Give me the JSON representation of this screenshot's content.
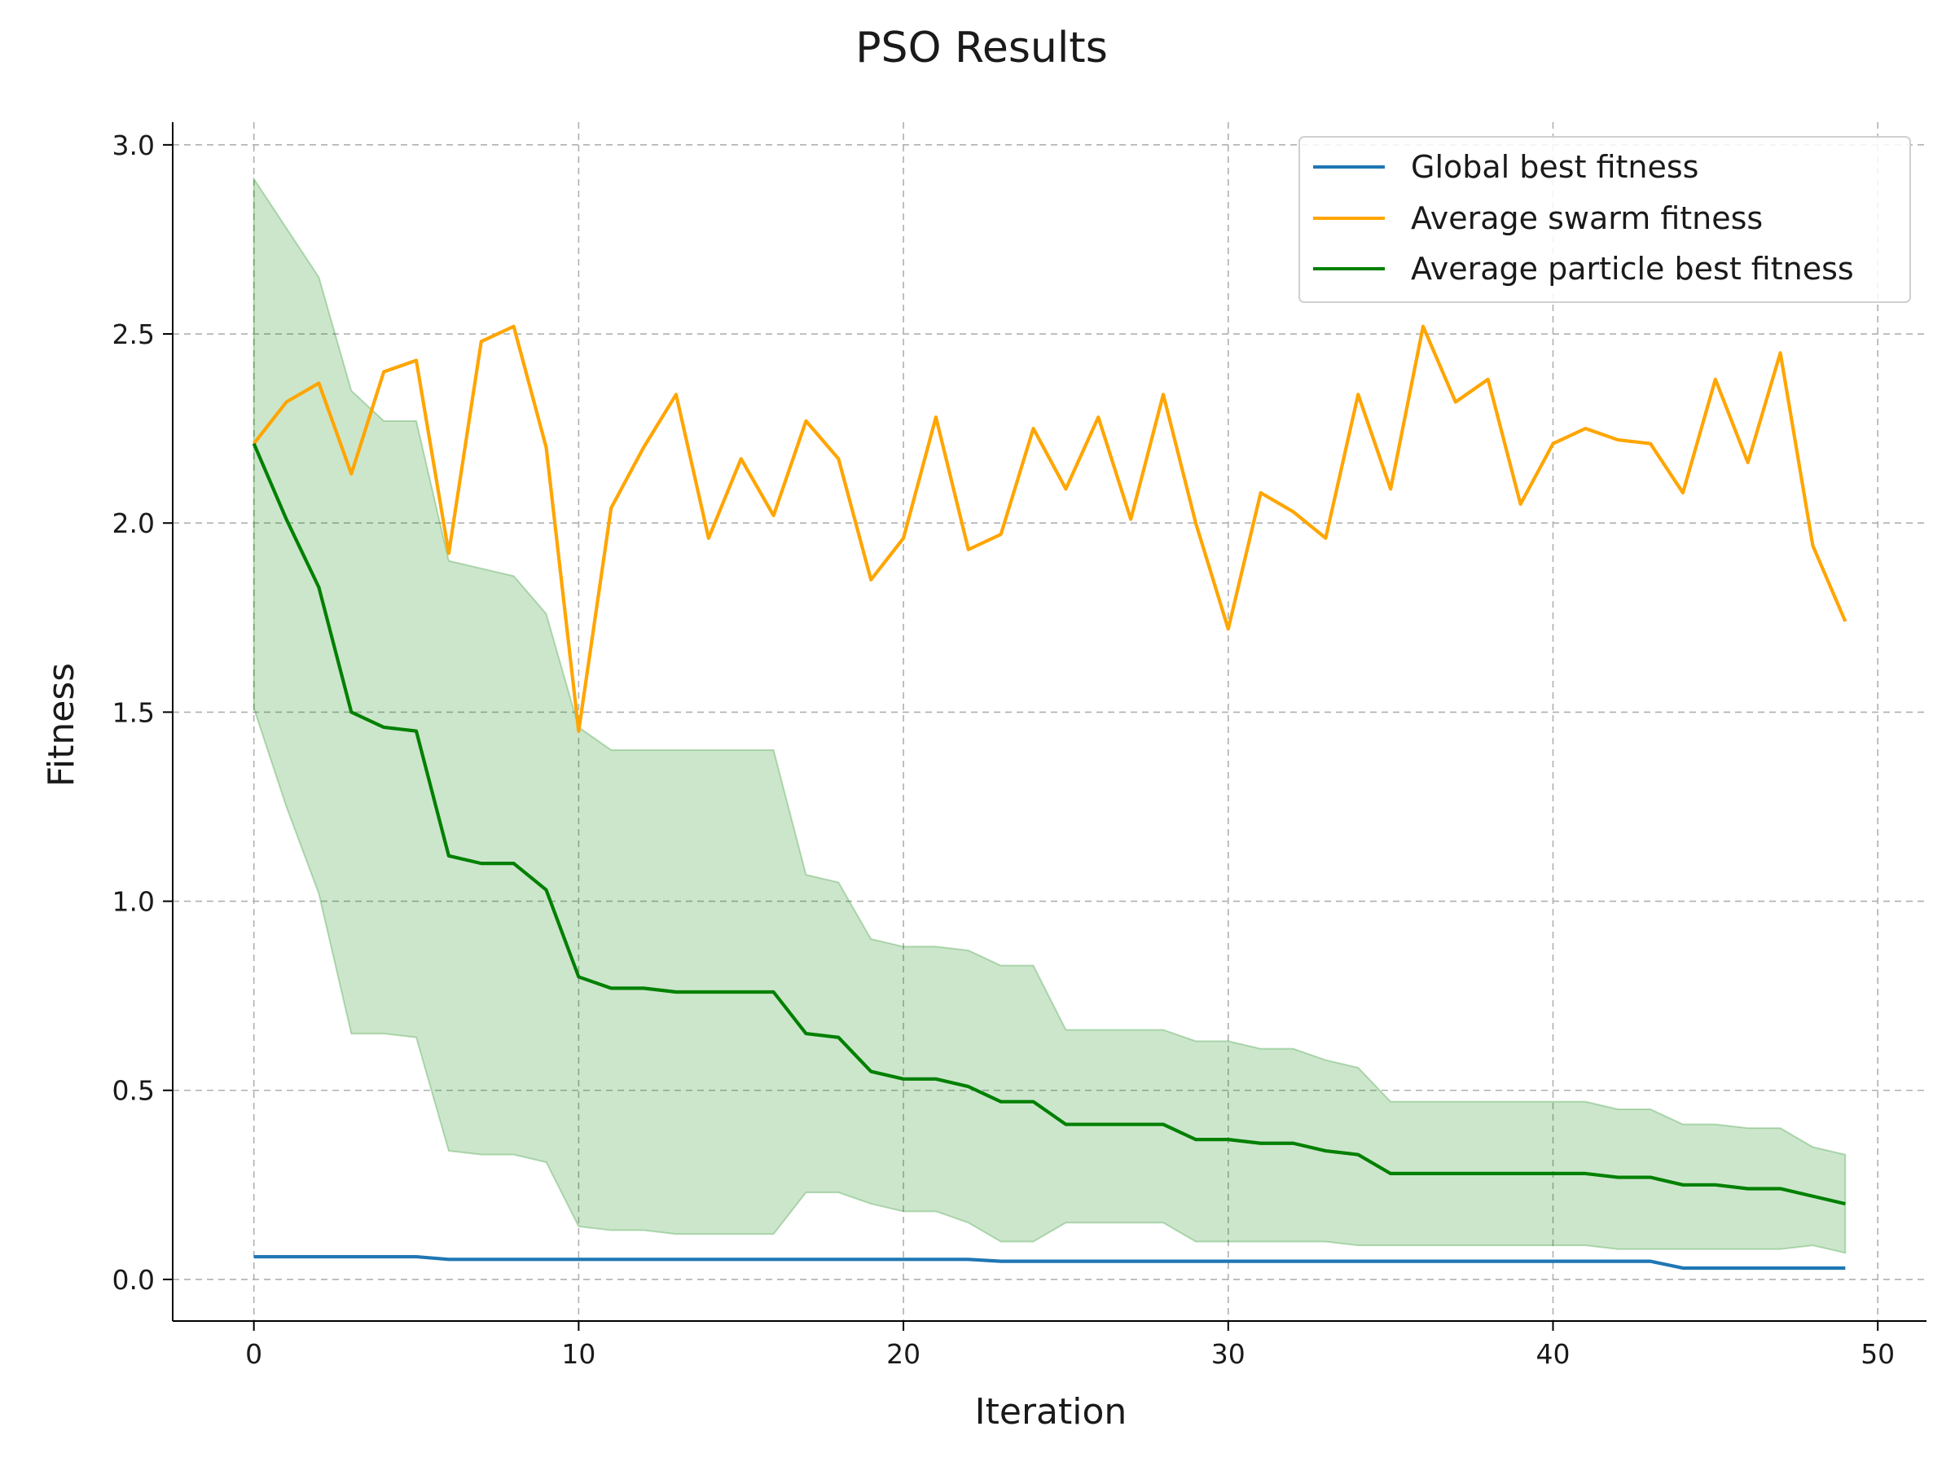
{
  "chart_data": {
    "type": "line",
    "title": "PSO Results",
    "xlabel": "Iteration",
    "ylabel": "Fitness",
    "xlim": [
      -2.5,
      51.5
    ],
    "ylim": [
      -0.11,
      3.06
    ],
    "xticks": [
      0,
      10,
      20,
      30,
      40,
      50
    ],
    "xtick_labels": [
      "0",
      "10",
      "20",
      "30",
      "40",
      "50"
    ],
    "yticks": [
      0.0,
      0.5,
      1.0,
      1.5,
      2.0,
      2.5,
      3.0
    ],
    "ytick_labels": [
      "0.0",
      "0.5",
      "1.0",
      "1.5",
      "2.0",
      "2.5",
      "3.0"
    ],
    "grid": true,
    "legend_position": "top-right",
    "x": [
      0,
      1,
      2,
      3,
      4,
      5,
      6,
      7,
      8,
      9,
      10,
      11,
      12,
      13,
      14,
      15,
      16,
      17,
      18,
      19,
      20,
      21,
      22,
      23,
      24,
      25,
      26,
      27,
      28,
      29,
      30,
      31,
      32,
      33,
      34,
      35,
      36,
      37,
      38,
      39,
      40,
      41,
      42,
      43,
      44,
      45,
      46,
      47,
      48,
      49
    ],
    "series": [
      {
        "name": "Global best fitness",
        "color": "#1f77b4",
        "values": [
          0.06,
          0.06,
          0.06,
          0.06,
          0.06,
          0.06,
          0.053,
          0.053,
          0.053,
          0.053,
          0.053,
          0.053,
          0.053,
          0.053,
          0.053,
          0.053,
          0.053,
          0.053,
          0.053,
          0.053,
          0.053,
          0.053,
          0.053,
          0.048,
          0.048,
          0.048,
          0.048,
          0.048,
          0.048,
          0.048,
          0.048,
          0.048,
          0.048,
          0.048,
          0.048,
          0.048,
          0.048,
          0.048,
          0.048,
          0.048,
          0.048,
          0.048,
          0.048,
          0.048,
          0.03,
          0.03,
          0.03,
          0.03,
          0.03,
          0.03
        ]
      },
      {
        "name": "Average swarm fitness",
        "color": "#ffa500",
        "values": [
          2.21,
          2.32,
          2.37,
          2.13,
          2.4,
          2.43,
          1.92,
          2.48,
          2.52,
          2.2,
          1.45,
          2.04,
          2.2,
          2.34,
          1.96,
          2.17,
          2.02,
          2.27,
          2.17,
          1.85,
          1.96,
          2.28,
          1.93,
          1.97,
          2.25,
          2.09,
          2.28,
          2.01,
          2.34,
          2.0,
          1.72,
          2.08,
          2.03,
          1.96,
          2.34,
          2.09,
          2.52,
          2.32,
          2.38,
          2.05,
          2.21,
          2.25,
          2.22,
          2.21,
          2.08,
          2.38,
          2.16,
          2.45,
          1.94,
          1.74
        ]
      },
      {
        "name": "Average particle best fitness",
        "color": "#008000",
        "values": [
          2.21,
          2.01,
          1.83,
          1.5,
          1.46,
          1.45,
          1.12,
          1.1,
          1.1,
          1.03,
          0.8,
          0.77,
          0.77,
          0.76,
          0.76,
          0.76,
          0.76,
          0.65,
          0.64,
          0.55,
          0.53,
          0.53,
          0.51,
          0.47,
          0.47,
          0.41,
          0.41,
          0.41,
          0.41,
          0.37,
          0.37,
          0.36,
          0.36,
          0.34,
          0.33,
          0.28,
          0.28,
          0.28,
          0.28,
          0.28,
          0.28,
          0.28,
          0.27,
          0.27,
          0.25,
          0.25,
          0.24,
          0.24,
          0.22,
          0.2
        ]
      }
    ],
    "band": {
      "series": "Average particle best fitness",
      "color": "#008000",
      "opacity": 0.2,
      "upper": [
        2.91,
        2.78,
        2.65,
        2.35,
        2.27,
        2.27,
        1.9,
        1.88,
        1.86,
        1.76,
        1.46,
        1.4,
        1.4,
        1.4,
        1.4,
        1.4,
        1.4,
        1.07,
        1.05,
        0.9,
        0.88,
        0.88,
        0.87,
        0.83,
        0.83,
        0.66,
        0.66,
        0.66,
        0.66,
        0.63,
        0.63,
        0.61,
        0.61,
        0.58,
        0.56,
        0.47,
        0.47,
        0.47,
        0.47,
        0.47,
        0.47,
        0.47,
        0.45,
        0.45,
        0.41,
        0.41,
        0.4,
        0.4,
        0.35,
        0.33
      ],
      "lower": [
        1.51,
        1.25,
        1.02,
        0.65,
        0.65,
        0.64,
        0.34,
        0.33,
        0.33,
        0.31,
        0.14,
        0.13,
        0.13,
        0.12,
        0.12,
        0.12,
        0.12,
        0.23,
        0.23,
        0.2,
        0.18,
        0.18,
        0.15,
        0.1,
        0.1,
        0.15,
        0.15,
        0.15,
        0.15,
        0.1,
        0.1,
        0.1,
        0.1,
        0.1,
        0.09,
        0.09,
        0.09,
        0.09,
        0.09,
        0.09,
        0.09,
        0.09,
        0.08,
        0.08,
        0.08,
        0.08,
        0.08,
        0.08,
        0.09,
        0.07
      ]
    }
  }
}
